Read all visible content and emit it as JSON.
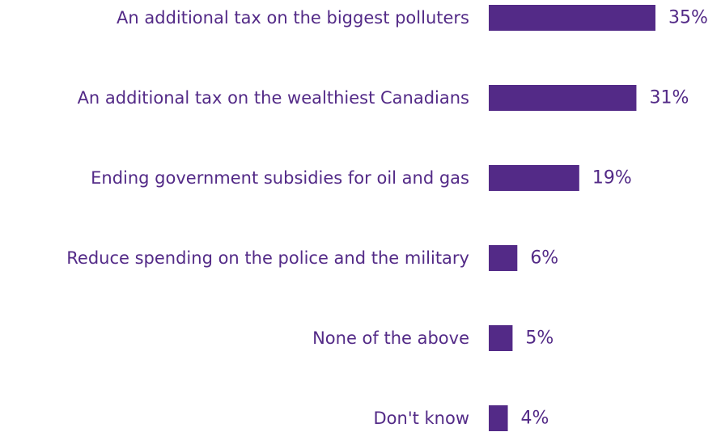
{
  "colors": {
    "bar": "#532a87",
    "text": "#532a87",
    "background": "#ffffff"
  },
  "chart_data": {
    "type": "bar",
    "orientation": "horizontal",
    "title": "",
    "xlabel": "",
    "ylabel": "",
    "xlim": [
      0,
      35
    ],
    "grid": false,
    "legend": "none",
    "categories": [
      "An additional tax on the biggest polluters",
      "An additional tax on the wealthiest Canadians",
      "Ending government subsidies for oil and gas",
      "Reduce spending on the police and the military",
      "None of the above",
      "Don't know"
    ],
    "values": [
      35,
      31,
      19,
      6,
      5,
      4
    ],
    "value_labels": [
      "35%",
      "31%",
      "19%",
      "6%",
      "5%",
      "4%"
    ]
  }
}
